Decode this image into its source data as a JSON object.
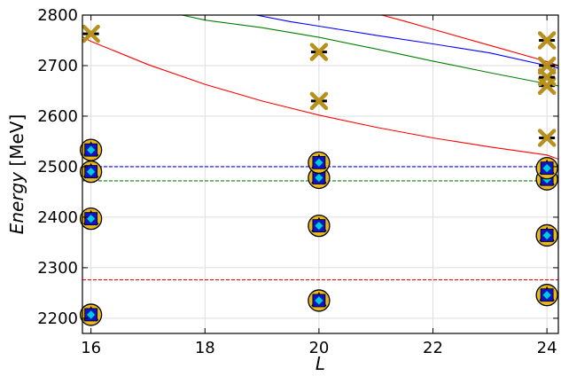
{
  "chart_data": {
    "type": "scatter",
    "xlabel_italic": "Energy",
    "xlabel": "L",
    "ylabel_italic": "Energy",
    "ylabel_unit": " [MeV]",
    "xlim": [
      15.85,
      24.2
    ],
    "ylim": [
      2170,
      2800
    ],
    "xticks": [
      16,
      18,
      20,
      22,
      24
    ],
    "yticks": [
      2200,
      2300,
      2400,
      2500,
      2600,
      2700,
      2800
    ],
    "grid": true,
    "colors": {
      "red": "#ff0000",
      "green": "#008000",
      "blue": "#0000ff",
      "gold": "#e8b820",
      "cross": "#b8901c",
      "cyan": "#00c8e8",
      "darkred": "#c01010",
      "navy": "#1010d0"
    },
    "thresholds": [
      {
        "color": "red",
        "value": 2276
      },
      {
        "color": "green",
        "value": 2472
      },
      {
        "color": "blue",
        "value": 2500
      }
    ],
    "curves": [
      {
        "color": "red",
        "points": [
          [
            15.85,
            2757
          ],
          [
            16,
            2748
          ],
          [
            17,
            2702
          ],
          [
            18,
            2663
          ],
          [
            19,
            2630
          ],
          [
            20,
            2602
          ],
          [
            21,
            2578
          ],
          [
            22,
            2557
          ],
          [
            23,
            2539
          ],
          [
            24,
            2523
          ],
          [
            24.2,
            2515
          ]
        ]
      },
      {
        "color": "green",
        "points": [
          [
            17.6,
            2800
          ],
          [
            18,
            2790
          ],
          [
            19,
            2775
          ],
          [
            20,
            2756
          ],
          [
            21,
            2733
          ],
          [
            22,
            2709
          ],
          [
            23,
            2686
          ],
          [
            24,
            2664
          ],
          [
            24.2,
            2660
          ]
        ]
      },
      {
        "color": "blue",
        "points": [
          [
            18.9,
            2800
          ],
          [
            19.5,
            2787
          ],
          [
            20,
            2778
          ],
          [
            21,
            2760
          ],
          [
            22,
            2743
          ],
          [
            23,
            2725
          ],
          [
            24,
            2700
          ],
          [
            24.2,
            2695
          ]
        ]
      },
      {
        "color": "red",
        "points": [
          [
            21.1,
            2800
          ],
          [
            21.5,
            2788
          ],
          [
            22,
            2772
          ],
          [
            23,
            2740
          ],
          [
            24,
            2708
          ],
          [
            24.2,
            2700
          ]
        ]
      }
    ],
    "circle_points": [
      {
        "x": 16,
        "y": 2207
      },
      {
        "x": 16,
        "y": 2397
      },
      {
        "x": 16,
        "y": 2490
      },
      {
        "x": 16,
        "y": 2533
      },
      {
        "x": 20,
        "y": 2235
      },
      {
        "x": 20,
        "y": 2383
      },
      {
        "x": 20,
        "y": 2478
      },
      {
        "x": 20,
        "y": 2508
      },
      {
        "x": 24,
        "y": 2246
      },
      {
        "x": 24,
        "y": 2364
      },
      {
        "x": 24,
        "y": 2475
      },
      {
        "x": 24,
        "y": 2497
      }
    ],
    "cross_points": [
      {
        "x": 16,
        "y": 2763
      },
      {
        "x": 20,
        "y": 2630
      },
      {
        "x": 20,
        "y": 2727
      },
      {
        "x": 24,
        "y": 2557
      },
      {
        "x": 24,
        "y": 2660
      },
      {
        "x": 24,
        "y": 2677
      },
      {
        "x": 24,
        "y": 2700
      },
      {
        "x": 24,
        "y": 2750
      }
    ]
  }
}
